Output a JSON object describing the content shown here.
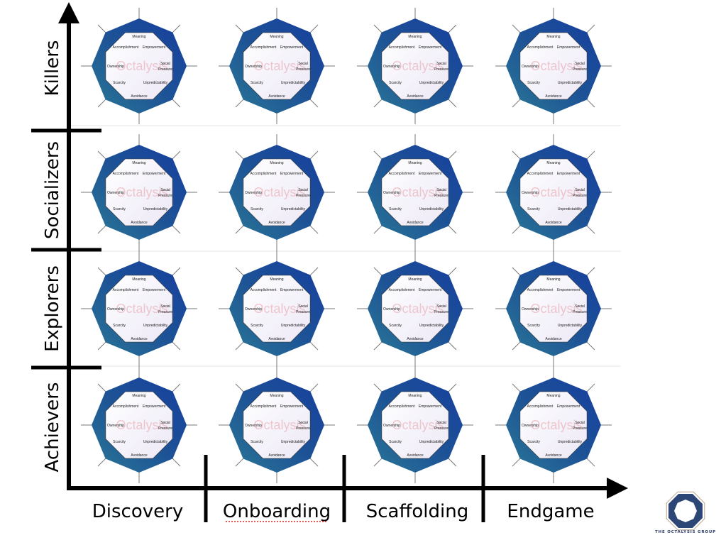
{
  "rows": [
    "Killers",
    "Socializers",
    "Explorers",
    "Achievers"
  ],
  "columns": [
    "Discovery",
    "Onboarding",
    "Scaffolding",
    "Endgame"
  ],
  "octagon": {
    "core_drives": {
      "meaning": "Meaning",
      "accomplishment": "Accomplishment",
      "empowerment": "Empowerment",
      "ownership": "Ownership",
      "social_1": "Social",
      "social_2": "Pressure",
      "scarcity": "Scarcity",
      "unpredictability": "Unpredictability",
      "avoidance": "Avoidance"
    },
    "watermark": "Octalysis"
  },
  "logo": {
    "text": "THE OCTALYSIS GROUP"
  },
  "colors": {
    "octagon_dark": "#1a3f9a",
    "octagon_teal": "#2a7095",
    "axis": "#000000"
  }
}
